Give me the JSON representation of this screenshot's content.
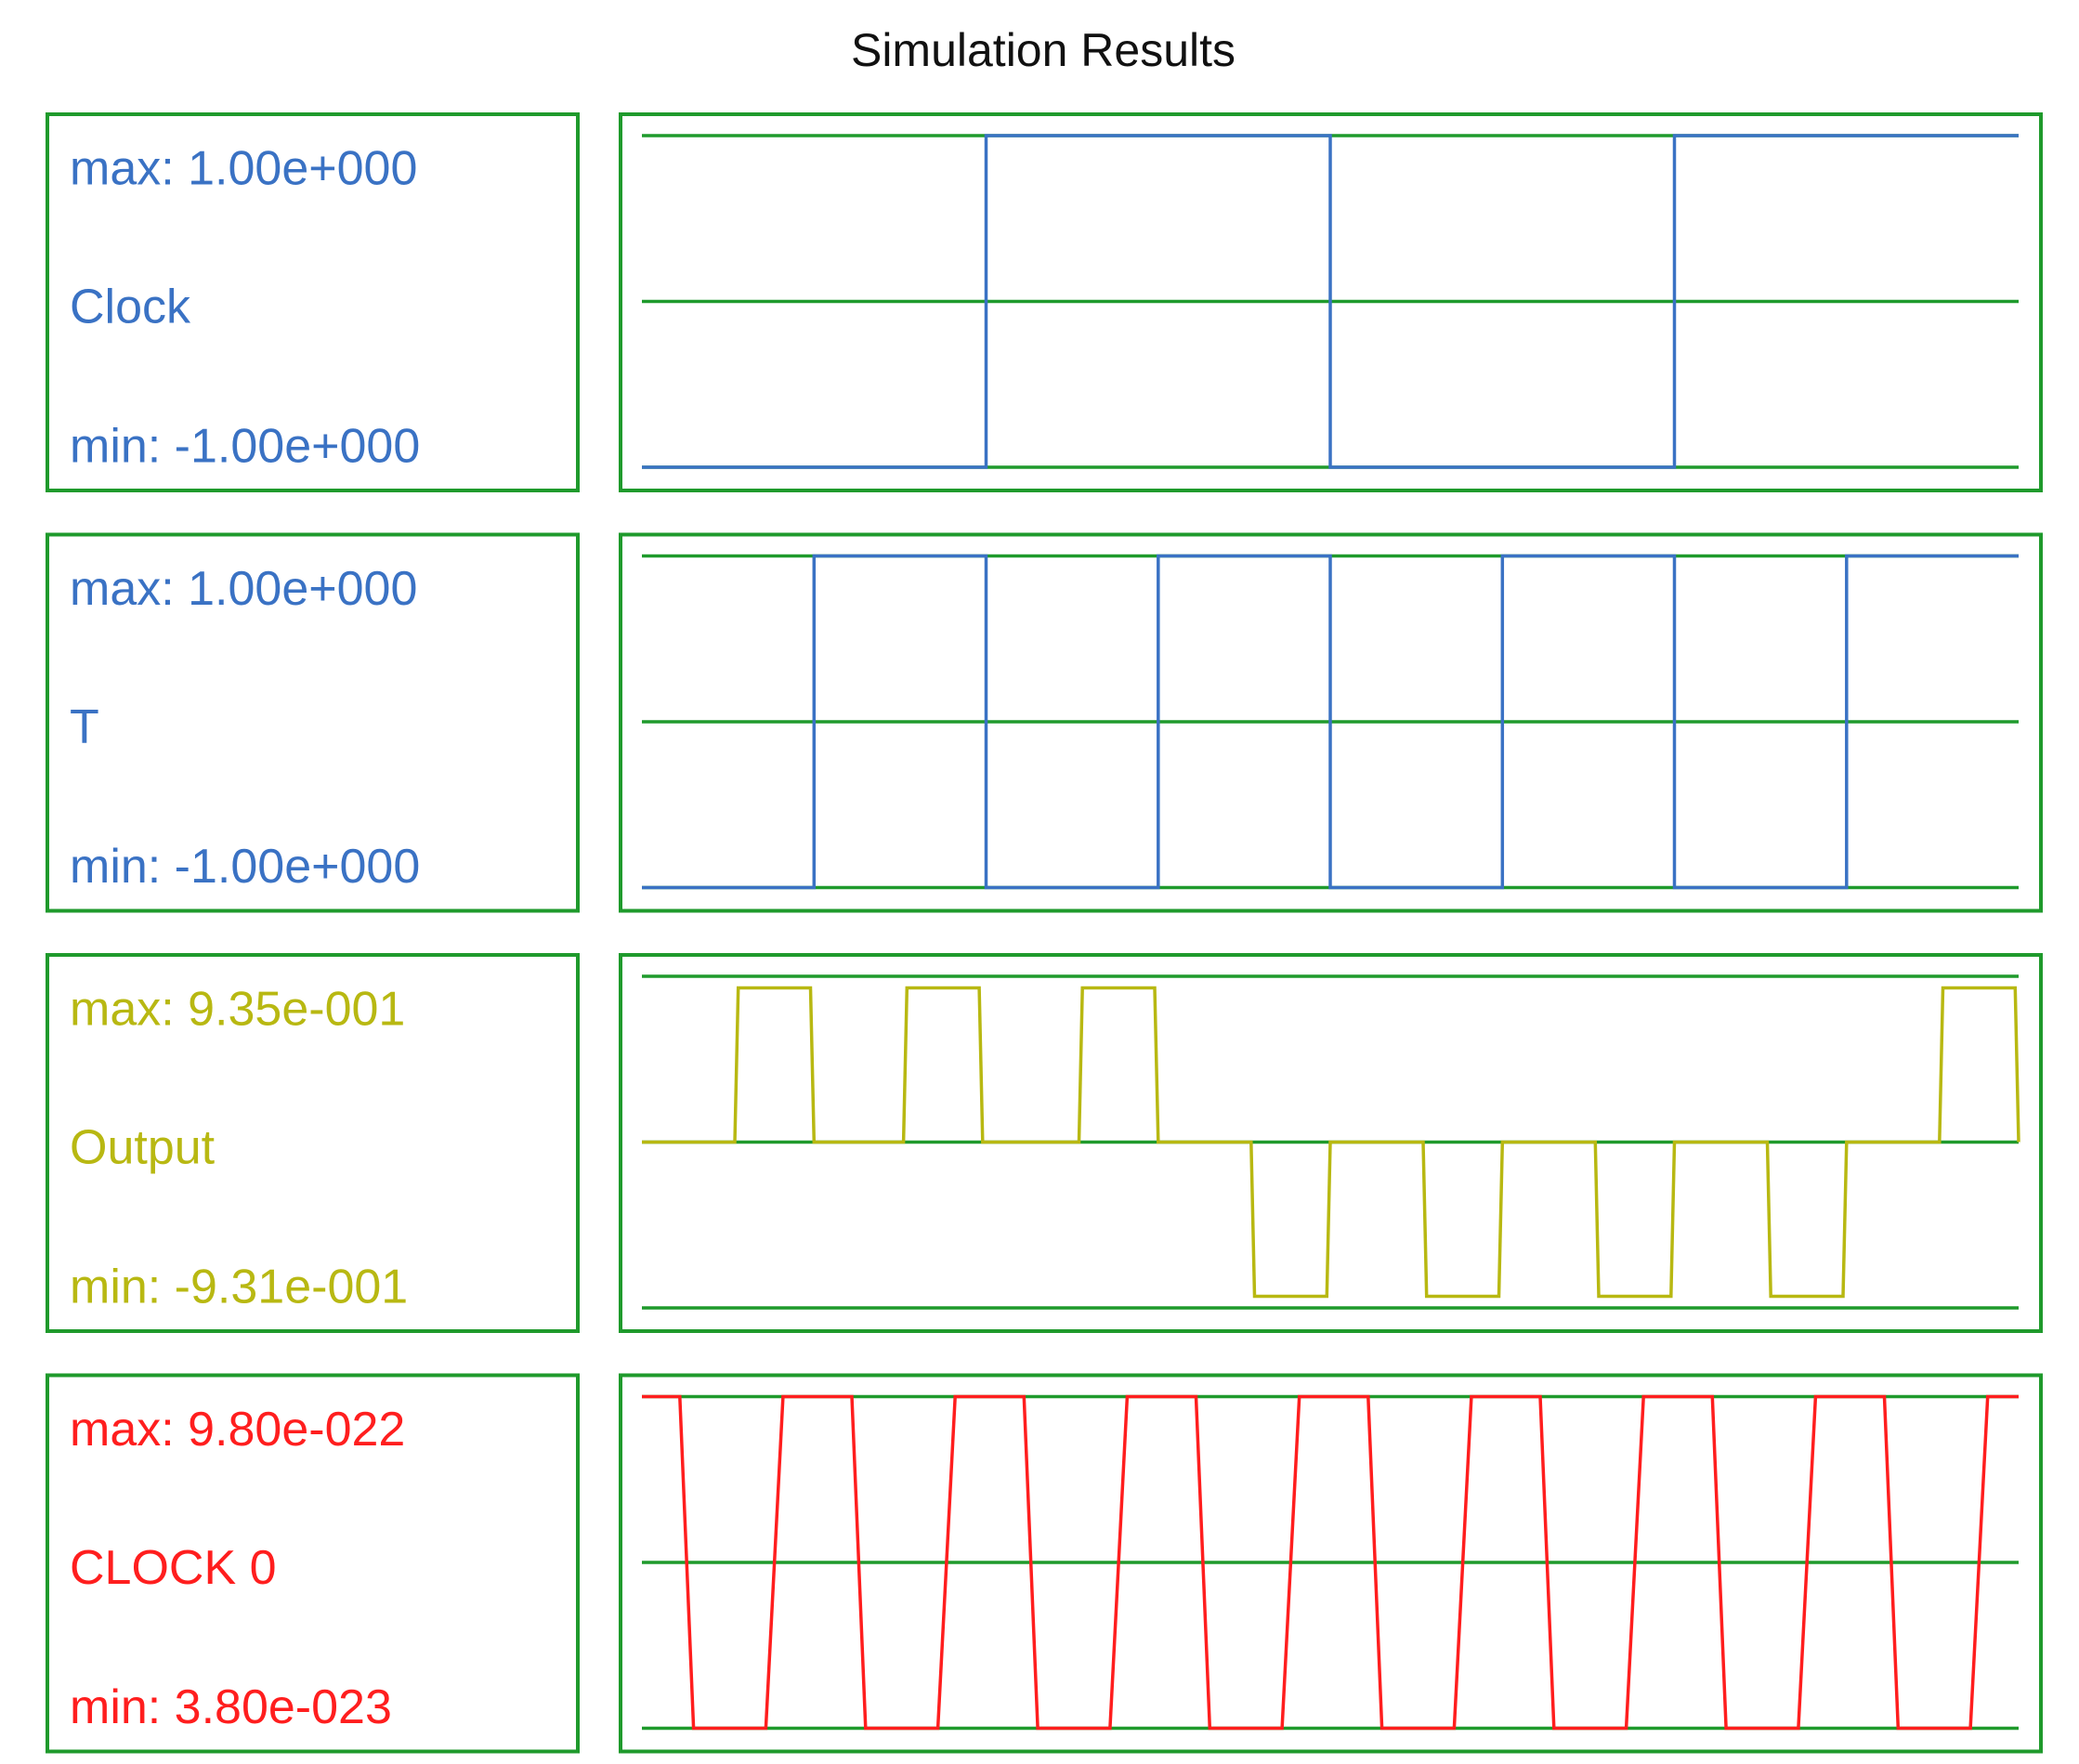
{
  "title": "Simulation Results",
  "chart_data": [
    {
      "type": "line",
      "name": "Clock",
      "max_label": "max: 1.00e+000",
      "min_label": "min: -1.00e+000",
      "color": "#3a72c4",
      "xlim": [
        0,
        4
      ],
      "ylim": [
        -1,
        1
      ],
      "yticks": [
        -1,
        0,
        1
      ],
      "grid": true,
      "x": [
        0,
        1,
        1,
        2,
        2,
        3,
        3,
        4
      ],
      "values": [
        -1,
        -1,
        1,
        1,
        -1,
        -1,
        1,
        1
      ]
    },
    {
      "type": "line",
      "name": "T",
      "max_label": "max: 1.00e+000",
      "min_label": "min: -1.00e+000",
      "color": "#3a72c4",
      "xlim": [
        0,
        4
      ],
      "ylim": [
        -1,
        1
      ],
      "yticks": [
        -1,
        0,
        1
      ],
      "grid": true,
      "x": [
        0,
        0.5,
        0.5,
        1,
        1,
        1.5,
        1.5,
        2,
        2,
        2.5,
        2.5,
        3,
        3,
        3.5,
        3.5,
        4
      ],
      "values": [
        -1,
        -1,
        1,
        1,
        -1,
        -1,
        1,
        1,
        -1,
        -1,
        1,
        1,
        -1,
        -1,
        1,
        1
      ]
    },
    {
      "type": "line",
      "name": "Output",
      "max_label": "max: 9.35e-001",
      "min_label": "min: -9.31e-001",
      "color": "#b8b812",
      "xlim": [
        0,
        4
      ],
      "ylim": [
        -1,
        1
      ],
      "yticks": [
        -1,
        0,
        1
      ],
      "grid": true,
      "x": [
        0,
        0.27,
        0.28,
        0.49,
        0.5,
        0.76,
        0.77,
        0.98,
        0.99,
        1.27,
        1.28,
        1.49,
        1.5,
        1.77,
        1.78,
        1.99,
        2.0,
        2.27,
        2.28,
        2.49,
        2.5,
        2.77,
        2.78,
        2.99,
        3.0,
        3.27,
        3.28,
        3.49,
        3.5,
        3.77,
        3.78,
        3.99,
        4.0
      ],
      "values": [
        0,
        0,
        0.93,
        0.93,
        0,
        0,
        0.93,
        0.93,
        0,
        0,
        0.93,
        0.93,
        0,
        0,
        -0.93,
        -0.93,
        0,
        0,
        -0.93,
        -0.93,
        0,
        0,
        -0.93,
        -0.93,
        0,
        0,
        -0.93,
        -0.93,
        0,
        0,
        0.93,
        0.93,
        0
      ]
    },
    {
      "type": "line",
      "name": "CLOCK 0",
      "max_label": "max: 9.80e-022",
      "min_label": "min: 3.80e-023",
      "color": "#ff1e1e",
      "xlim": [
        0,
        4
      ],
      "ylim": [
        3.8e-23,
        9.8e-22
      ],
      "yticks": [
        3.8e-23,
        5.09e-22,
        9.8e-22
      ],
      "grid": true,
      "x": [
        0,
        0.11,
        0.15,
        0.36,
        0.41,
        0.61,
        0.65,
        0.86,
        0.91,
        1.11,
        1.15,
        1.36,
        1.41,
        1.61,
        1.65,
        1.86,
        1.91,
        2.11,
        2.15,
        2.36,
        2.41,
        2.61,
        2.65,
        2.86,
        2.91,
        3.11,
        3.15,
        3.36,
        3.41,
        3.61,
        3.65,
        3.86,
        3.91,
        4
      ],
      "values": [
        9.8e-22,
        9.8e-22,
        3.8e-23,
        3.8e-23,
        9.8e-22,
        9.8e-22,
        3.8e-23,
        3.8e-23,
        9.8e-22,
        9.8e-22,
        3.8e-23,
        3.8e-23,
        9.8e-22,
        9.8e-22,
        3.8e-23,
        3.8e-23,
        9.8e-22,
        9.8e-22,
        3.8e-23,
        3.8e-23,
        9.8e-22,
        9.8e-22,
        3.8e-23,
        3.8e-23,
        9.8e-22,
        9.8e-22,
        3.8e-23,
        3.8e-23,
        9.8e-22,
        9.8e-22,
        3.8e-23,
        3.8e-23,
        9.8e-22,
        9.8e-22
      ]
    }
  ]
}
